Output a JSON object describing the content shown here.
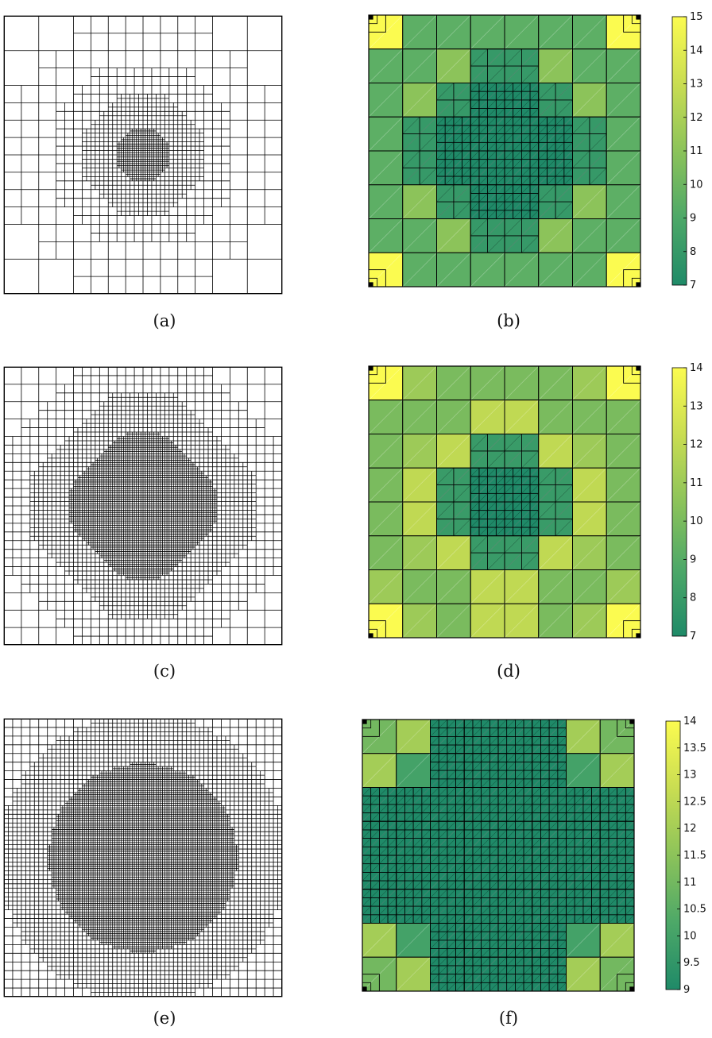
{
  "captions": [
    "(a)",
    "(b)",
    "(c)",
    "(d)",
    "(e)",
    "(f)"
  ],
  "colors": {
    "dark": "#1f8a68",
    "light": "#fbfb50",
    "grid": "#000000"
  },
  "meshes": [
    {
      "id": "a",
      "grid": 64,
      "core_radius": 0.085,
      "shape": "circle",
      "zones": [
        0.085,
        0.2,
        0.3,
        0.42
      ]
    },
    {
      "id": "c",
      "grid": 64,
      "core_radius": 0.23,
      "shape": "rounded-diamond",
      "zones": [
        0.23,
        0.36,
        0.46,
        0.58
      ]
    },
    {
      "id": "e",
      "grid": 64,
      "core_radius": 0.33,
      "shape": "circle-blob",
      "zones": [
        0.33,
        0.5,
        0.7,
        0.9
      ]
    }
  ],
  "colorbars": [
    {
      "id": "b",
      "min": 7,
      "max": 15,
      "ticks": [
        "15",
        "14",
        "13",
        "12",
        "11",
        "10",
        "9",
        "8",
        "7"
      ]
    },
    {
      "id": "d",
      "min": 7,
      "max": 14,
      "ticks": [
        "14",
        "13",
        "12",
        "11",
        "10",
        "9",
        "8",
        "7"
      ]
    },
    {
      "id": "f",
      "min": 9,
      "max": 14,
      "ticks": [
        "14",
        "13.5",
        "13",
        "12.5",
        "12",
        "11.5",
        "11",
        "10.5",
        "10",
        "9.5",
        "9"
      ]
    }
  ],
  "color_maps": [
    {
      "id": "b",
      "values": [
        [
          15,
          9.5,
          9.5,
          9.5,
          9.5,
          9.5,
          9.5,
          15
        ],
        [
          9.5,
          9.5,
          11,
          8,
          8,
          11,
          9.5,
          9.5
        ],
        [
          9.5,
          11,
          8,
          7,
          7,
          8,
          11,
          9.5
        ],
        [
          9.5,
          8,
          7,
          7,
          7,
          7,
          8,
          9.5
        ],
        [
          9.5,
          8,
          7,
          7,
          7,
          7,
          8,
          9.5
        ],
        [
          9.5,
          11,
          8,
          7,
          7,
          8,
          11,
          9.5
        ],
        [
          9.5,
          9.5,
          11,
          8,
          8,
          11,
          9.5,
          9.5
        ],
        [
          15,
          9.5,
          9.5,
          9.5,
          9.5,
          9.5,
          9.5,
          15
        ]
      ]
    },
    {
      "id": "d",
      "values": [
        [
          14,
          11,
          10,
          10,
          10,
          10,
          11,
          14
        ],
        [
          10,
          10,
          10,
          12,
          12,
          10,
          10,
          10
        ],
        [
          10,
          11,
          12,
          8,
          8,
          12,
          11,
          10
        ],
        [
          10,
          12,
          8,
          7,
          7,
          8,
          12,
          10
        ],
        [
          10,
          12,
          8,
          7,
          7,
          8,
          12,
          10
        ],
        [
          10,
          11,
          12,
          8,
          8,
          12,
          11,
          10
        ],
        [
          11,
          10,
          10,
          12,
          12,
          10,
          10,
          11
        ],
        [
          14,
          11,
          10,
          12,
          12,
          10,
          11,
          14
        ]
      ]
    },
    {
      "id": "f",
      "values": [
        [
          11,
          12,
          9,
          9,
          9,
          9,
          12,
          11
        ],
        [
          12,
          10,
          9,
          9,
          9,
          9,
          10,
          12
        ],
        [
          9,
          9,
          9,
          9,
          9,
          9,
          9,
          9
        ],
        [
          9,
          9,
          9,
          9,
          9,
          9,
          9,
          9
        ],
        [
          9,
          9,
          9,
          9,
          9,
          9,
          9,
          9
        ],
        [
          9,
          9,
          9,
          9,
          9,
          9,
          9,
          9
        ],
        [
          12,
          10,
          9,
          9,
          9,
          9,
          10,
          12
        ],
        [
          11,
          12,
          9,
          9,
          9,
          9,
          12,
          11
        ]
      ]
    }
  ]
}
